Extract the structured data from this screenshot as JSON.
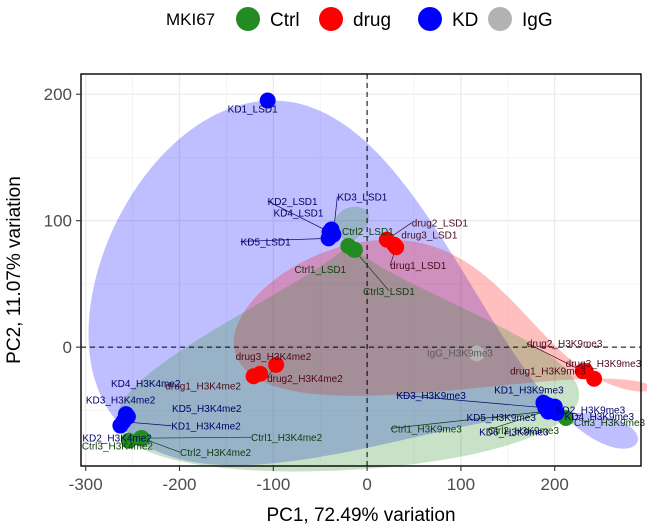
{
  "chart_data": {
    "type": "scatter",
    "xlabel": "PC1, 72.49% variation",
    "ylabel": "PC2, 11.07% variation",
    "xlim": [
      -305,
      292
    ],
    "ylim": [
      -94,
      216
    ],
    "xticks": [
      "-300",
      "-200",
      "-100",
      "0",
      "100",
      "200"
    ],
    "xtick_values": [
      -300,
      -200,
      -100,
      0,
      100,
      200
    ],
    "yticks": [
      "0",
      "100",
      "200"
    ],
    "ytick_values": [
      0,
      100,
      200
    ],
    "reference_lines": {
      "x": 0,
      "y": 0,
      "style": "dashed"
    },
    "grid": true,
    "legend": {
      "title": "MKI67",
      "position": "top",
      "entries": [
        {
          "label": "Ctrl",
          "color": "#228b22"
        },
        {
          "label": "drug",
          "color": "#ff0000"
        },
        {
          "label": "KD",
          "color": "#0000ff"
        },
        {
          "label": "IgG",
          "color": "#b3b3b3"
        }
      ]
    },
    "series": [
      {
        "group": "Ctrl",
        "color": "#228b22",
        "label_color": "#0b3d0b",
        "points": [
          {
            "label": "Ctrl1_LSD1",
            "x": -20,
            "y": 80
          },
          {
            "label": "Ctrl2_LSD1",
            "x": -13,
            "y": 77
          },
          {
            "label": "Ctrl3_LSD1",
            "x": -14,
            "y": 77
          },
          {
            "label": "Ctrl1_H3K4me2",
            "x": -241,
            "y": -72
          },
          {
            "label": "Ctrl2_H3K4me2",
            "x": -240,
            "y": -72
          },
          {
            "label": "Ctrl3_H3K4me2",
            "x": -254,
            "y": -74
          },
          {
            "label": "Ctrl1_H3K9me3",
            "x": 200,
            "y": -50
          },
          {
            "label": "Ctrl2_H3K9me3",
            "x": 197,
            "y": -49
          },
          {
            "label": "Ctrl3_H3K9me3",
            "x": 212,
            "y": -56
          }
        ]
      },
      {
        "group": "drug",
        "color": "#ff0000",
        "label_color": "#4d0a1a",
        "points": [
          {
            "label": "drug1_LSD1",
            "x": 31,
            "y": 79
          },
          {
            "label": "drug2_LSD1",
            "x": 21,
            "y": 85
          },
          {
            "label": "drug3_LSD1",
            "x": 29,
            "y": 81
          },
          {
            "label": "drug1_H3K4me2",
            "x": -114,
            "y": -21
          },
          {
            "label": "drug2_H3K4me2",
            "x": -97,
            "y": -14
          },
          {
            "label": "drug3_H3K4me2",
            "x": -121,
            "y": -23
          },
          {
            "label": "drug1_H3K9me3",
            "x": 242,
            "y": -25
          },
          {
            "label": "drug2_H3K9me3",
            "x": 230,
            "y": -19
          },
          {
            "label": "drug3_H3K9me3",
            "x": 233,
            "y": -19
          }
        ]
      },
      {
        "group": "KD",
        "color": "#0000ff",
        "label_color": "#000066",
        "points": [
          {
            "label": "KD1_LSD1",
            "x": -106,
            "y": 195
          },
          {
            "label": "KD2_LSD1",
            "x": -40,
            "y": 91
          },
          {
            "label": "KD3_LSD1",
            "x": -36,
            "y": 89
          },
          {
            "label": "KD4_LSD1",
            "x": -38,
            "y": 93
          },
          {
            "label": "KD5_LSD1",
            "x": -41,
            "y": 86
          },
          {
            "label": "KD1_H3K4me2",
            "x": -260,
            "y": -59
          },
          {
            "label": "KD2_H3K4me2",
            "x": -263,
            "y": -62
          },
          {
            "label": "KD3_H3K4me2",
            "x": -255,
            "y": -55
          },
          {
            "label": "KD4_H3K4me2",
            "x": -257,
            "y": -53
          },
          {
            "label": "KD5_H3K4me2",
            "x": -257,
            "y": -56
          },
          {
            "label": "KD1_H3K9me3",
            "x": 193,
            "y": -46
          },
          {
            "label": "KD2_H3K9me3",
            "x": 200,
            "y": -47
          },
          {
            "label": "KD3_H3K9me3",
            "x": 190,
            "y": -48
          },
          {
            "label": "KD4_H3K9me3",
            "x": 202,
            "y": -52
          },
          {
            "label": "KD5_H3K9me3",
            "x": 188,
            "y": -44
          },
          {
            "label": "KD6_H3K9me3",
            "x": 193,
            "y": -51
          }
        ]
      },
      {
        "group": "IgG",
        "color": "#b3b3b3",
        "label_color": "#5a5a5a",
        "points": [
          {
            "label": "IgG_H3K9me3",
            "x": 117,
            "y": -5
          }
        ]
      }
    ],
    "hulls": [
      {
        "group": "KD",
        "color": "#0000ff",
        "opacity": 0.25
      },
      {
        "group": "drug",
        "color": "#ff0000",
        "opacity": 0.25
      },
      {
        "group": "Ctrl",
        "color": "#228b22",
        "opacity": 0.25
      },
      {
        "group": "IgG",
        "color": "#b3b3b3",
        "opacity": 0.25
      }
    ]
  }
}
